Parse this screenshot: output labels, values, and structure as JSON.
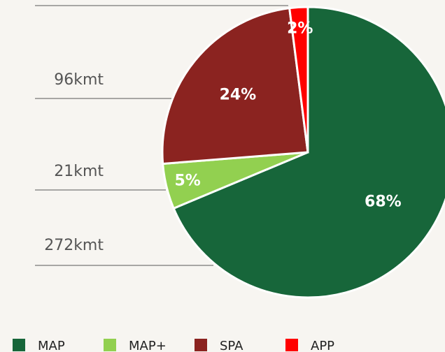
{
  "chart_data": {
    "type": "pie",
    "categories": [
      "MAP",
      "MAP+",
      "SPA",
      "APP"
    ],
    "values": [
      68,
      5,
      24,
      2
    ],
    "value_labels": [
      "68%",
      "5%",
      "24%",
      "2%"
    ],
    "callouts": [
      "272kmt",
      "21kmt",
      "96kmt",
      null
    ],
    "colors": [
      "#17663a",
      "#92d050",
      "#8b2320",
      "#ff0000"
    ],
    "legend": "bottom"
  }
}
